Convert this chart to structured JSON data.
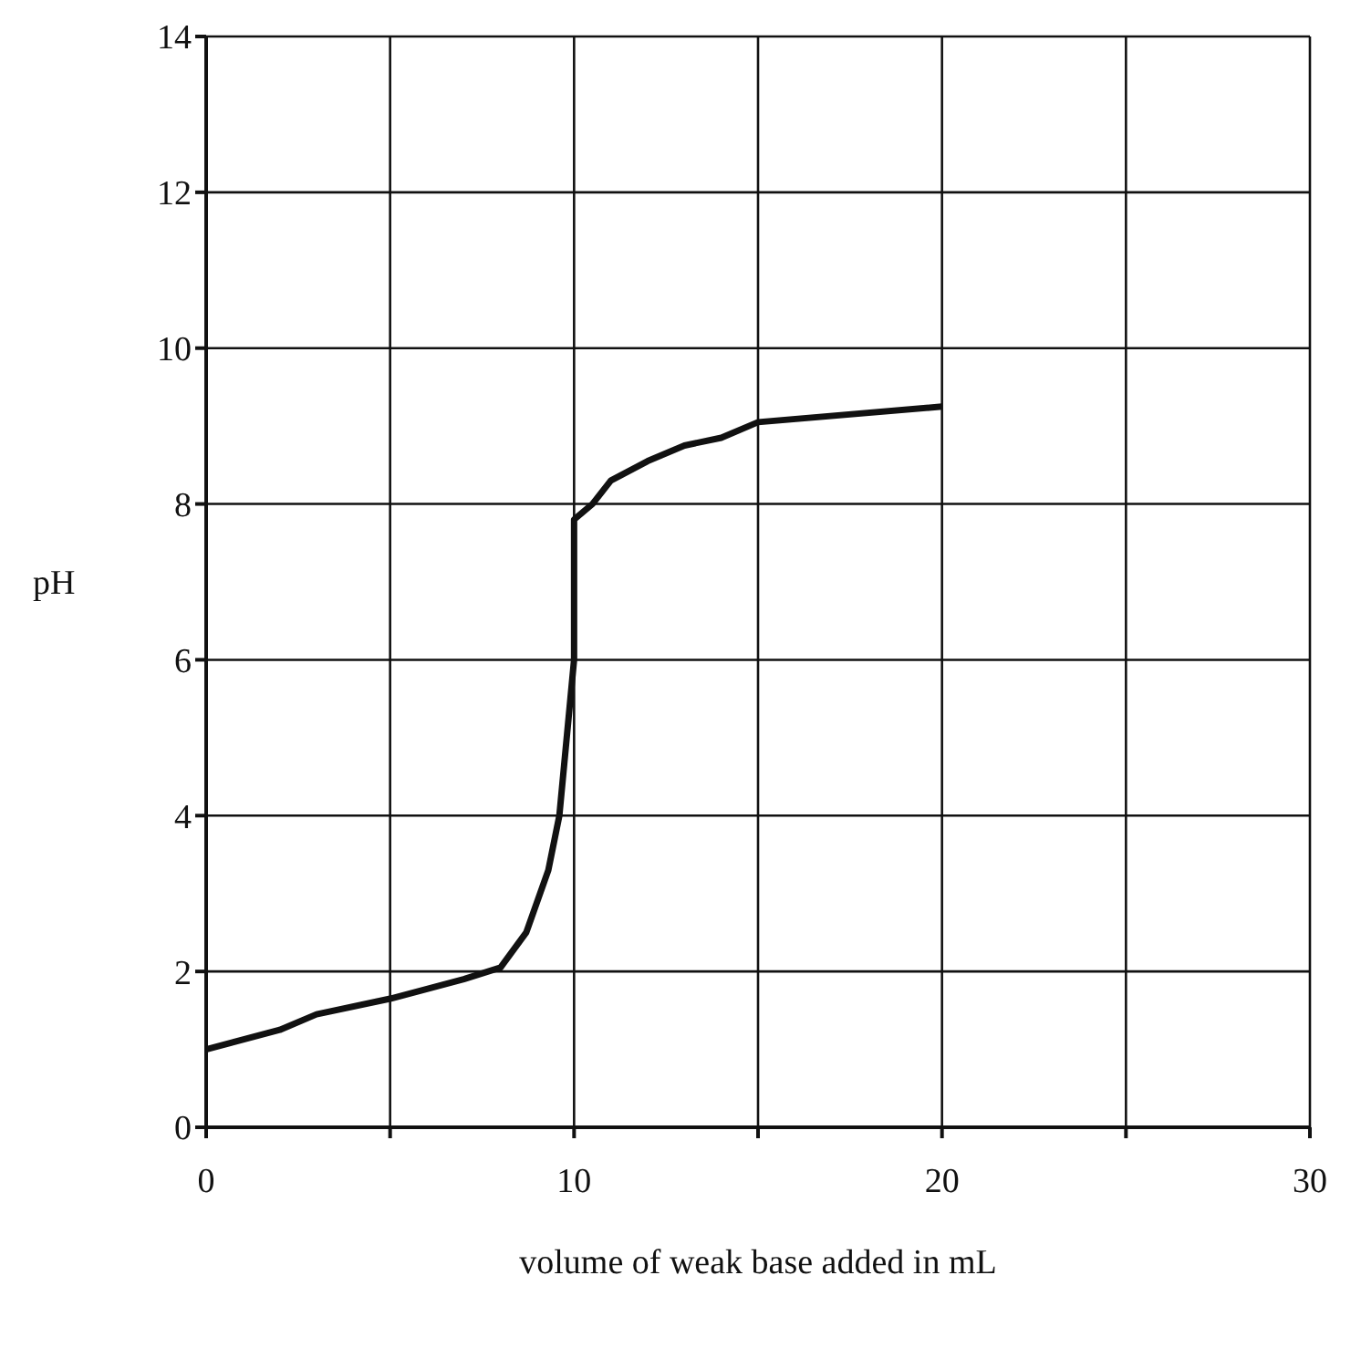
{
  "chart_data": {
    "type": "line",
    "xlabel": "volume of weak base added in mL",
    "ylabel": "pH",
    "x": [
      0,
      2,
      3,
      5,
      7,
      8,
      8.7,
      9.3,
      9.6,
      9.9,
      10,
      10,
      10.5,
      11,
      12,
      13,
      14,
      15,
      20
    ],
    "series": [
      {
        "color": "#111111",
        "values": [
          1.0,
          1.25,
          1.45,
          1.65,
          1.9,
          2.05,
          2.5,
          3.3,
          4,
          5.5,
          6,
          7.8,
          8.0,
          8.3,
          8.55,
          8.75,
          8.85,
          9.05,
          9.25
        ]
      }
    ],
    "xlim": [
      0,
      30
    ],
    "xticks": [
      0,
      {
        "value": 5,
        "label": null
      },
      10,
      {
        "value": 15,
        "label": null
      },
      20,
      {
        "value": 25,
        "label": null
      },
      30
    ],
    "ylim": [
      0,
      14
    ],
    "yticks": [
      0,
      2,
      4,
      6,
      8,
      10,
      12,
      14
    ],
    "grid": true,
    "legend": false,
    "marker": "none",
    "line_style": "solid"
  }
}
